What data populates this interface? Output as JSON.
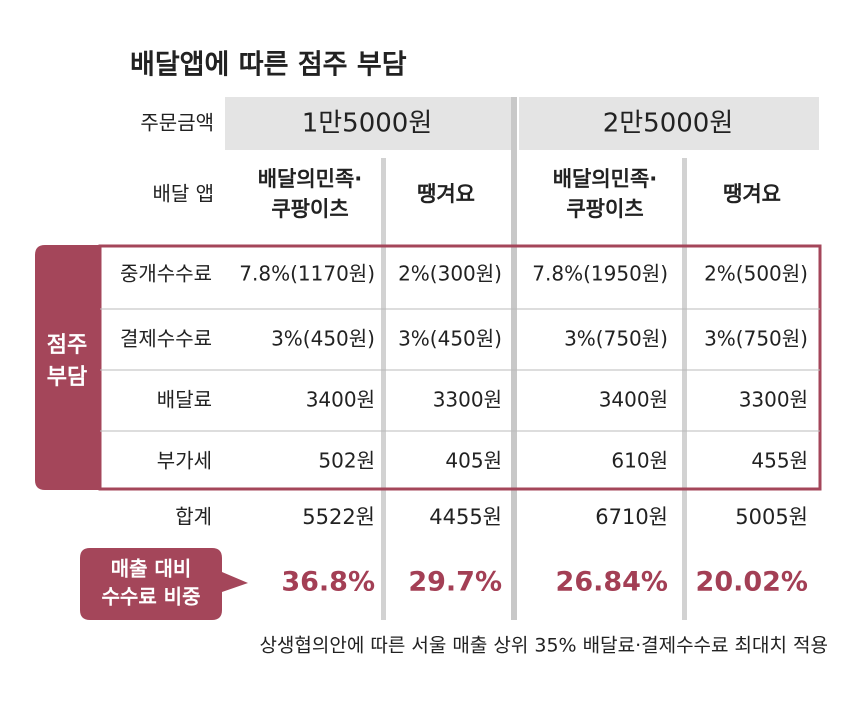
{
  "header": {
    "title": "배달앱에 따른 점주 부담"
  },
  "table": {
    "order_label": "주문금액",
    "order_amounts": [
      "1만5000원",
      "2만5000원"
    ],
    "app_label": "배달 앱",
    "apps": [
      [
        "배달의민족·",
        "쿠팡이츠"
      ],
      [
        "땡겨요"
      ],
      [
        "배달의민족·",
        "쿠팡이츠"
      ],
      [
        "땡겨요"
      ]
    ],
    "group_label": [
      "점주",
      "부담"
    ],
    "rows": [
      [
        "중개수수료",
        "7.8%(1170원)",
        "2%(300원)",
        "7.8%(1950원)",
        "2%(500원)"
      ],
      [
        "결제수수료",
        "3%(450원)",
        "3%(450원)",
        "3%(750원)",
        "3%(750원)"
      ],
      [
        "배달료",
        "3400원",
        "3300원",
        "3400원",
        "3300원"
      ],
      [
        "부가세",
        "502원",
        "405원",
        "610원",
        "455원"
      ]
    ],
    "total": [
      "합계",
      "5522원",
      "4455원",
      "6710원",
      "5005원"
    ],
    "ratio_label": [
      "매출 대비",
      "수수료 비중"
    ],
    "ratios": [
      "36.8%",
      "29.7%",
      "26.84%",
      "20.02%"
    ]
  },
  "footnote": "상생협의안에 따른 서울 매출 상위 35% 배달료·결제수수료 최대치 적용"
}
